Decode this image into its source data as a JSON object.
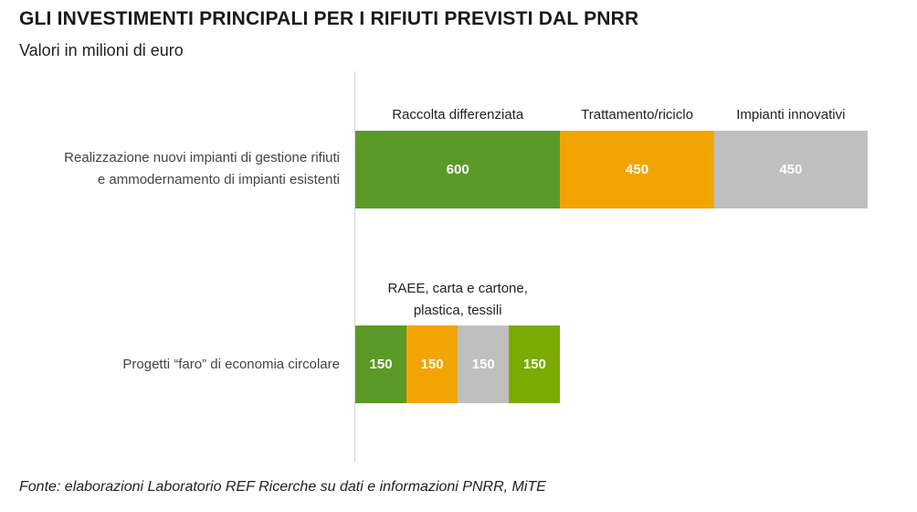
{
  "title": "GLI INVESTIMENTI PRINCIPALI PER I RIFIUTI PREVISTI DAL PNRR",
  "subtitle": "Valori in milioni di euro",
  "source": "Fonte: elaborazioni Laboratorio REF Ricerche su dati e informazioni PNRR, MiTE",
  "colors": {
    "green": "#5b9a28",
    "orange": "#f2a500",
    "gray": "#bfbfbf",
    "lime": "#7aab00"
  },
  "chart_data": {
    "type": "bar",
    "orientation": "horizontal",
    "stacked": true,
    "title": "GLI INVESTIMENTI PRINCIPALI PER I RIFIUTI PREVISTI DAL PNRR",
    "subtitle": "Valori in milioni di euro",
    "grid": false,
    "rows": [
      {
        "category_lines": [
          "Realizzazione nuovi impianti di gestione rifiuti",
          "e ammodernamento di impianti esistenti"
        ],
        "header_lines": [],
        "segments": [
          {
            "label": "Raccolta differenziata",
            "value": 600,
            "color": "green"
          },
          {
            "label": "Trattamento/riciclo",
            "value": 450,
            "color": "orange"
          },
          {
            "label": "Impianti innovativi",
            "value": 450,
            "color": "gray"
          }
        ]
      },
      {
        "category_lines": [
          "Progetti “faro” di economia circolare"
        ],
        "header_lines": [
          "RAEE, carta e cartone,",
          "plastica, tessili"
        ],
        "segments": [
          {
            "label": "",
            "value": 150,
            "color": "green"
          },
          {
            "label": "",
            "value": 150,
            "color": "orange"
          },
          {
            "label": "",
            "value": 150,
            "color": "gray"
          },
          {
            "label": "",
            "value": 150,
            "color": "lime"
          }
        ]
      }
    ]
  }
}
